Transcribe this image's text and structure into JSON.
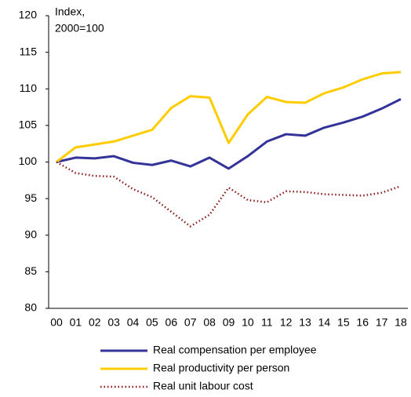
{
  "chart_data": {
    "type": "line",
    "ylabel": [
      "Index,",
      "2000=100"
    ],
    "categories": [
      "00",
      "01",
      "02",
      "03",
      "04",
      "05",
      "06",
      "07",
      "08",
      "09",
      "10",
      "11",
      "12",
      "13",
      "14",
      "15",
      "16",
      "17",
      "18"
    ],
    "series": [
      {
        "name": "Real compensation per employee",
        "color": "#333399",
        "dash": "solid",
        "values": [
          100,
          100.6,
          100.5,
          100.8,
          99.9,
          99.6,
          100.2,
          99.4,
          100.6,
          99.1,
          100.8,
          102.8,
          103.8,
          103.6,
          104.7,
          105.4,
          106.2,
          107.3,
          108.6
        ]
      },
      {
        "name": "Real productivity per person",
        "color": "#ffcc00",
        "dash": "solid",
        "values": [
          100,
          102,
          102.4,
          102.8,
          103.6,
          104.4,
          107.4,
          109,
          108.8,
          102.6,
          106.5,
          108.9,
          108.2,
          108.1,
          109.4,
          110.2,
          111.3,
          112.1,
          112.3
        ]
      },
      {
        "name": "Real unit labour cost",
        "color": "#8b1a1a",
        "dash": "dotted",
        "values": [
          100,
          98.5,
          98.1,
          98.0,
          96.3,
          95.2,
          93.2,
          91.2,
          92.8,
          96.5,
          94.8,
          94.5,
          96.0,
          95.9,
          95.6,
          95.5,
          95.4,
          95.8,
          96.7
        ]
      }
    ],
    "ylim": [
      80,
      120
    ],
    "yticks": [
      80,
      85,
      90,
      95,
      100,
      105,
      110,
      115,
      120
    ],
    "grid": false,
    "legend": "bottom"
  }
}
